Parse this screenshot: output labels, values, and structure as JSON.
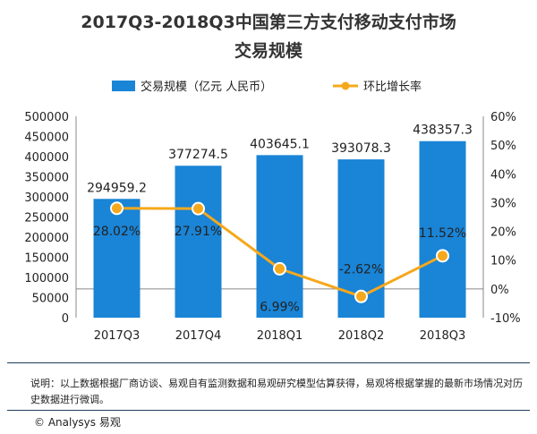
{
  "title_line1": "2017Q3-2018Q3中国第三方支付移动支付市场",
  "title_line2": "交易规模",
  "note": "说明：以上数据根据厂商访谈、易观自有监测数据和易观研究模型估算获得，易观将根据掌握的最新市场情况对历史数据进行微调。",
  "source": "© Analysys 易观",
  "colors": {
    "bar": "#1a84d6",
    "line": "#f5a81c",
    "axis": "#888888"
  },
  "chart_data": {
    "type": "bar",
    "categories": [
      "2017Q3",
      "2017Q4",
      "2018Q1",
      "2018Q2",
      "2018Q3"
    ],
    "series": [
      {
        "name": "交易规模（亿元 人民币）",
        "type": "bar",
        "axis": "left",
        "values": [
          294959.2,
          377274.5,
          403645.1,
          393078.3,
          438357.3
        ],
        "labels": [
          "294959.2",
          "377274.5",
          "403645.1",
          "393078.3",
          "438357.3"
        ]
      },
      {
        "name": "环比增长率",
        "type": "line",
        "axis": "right",
        "values": [
          28.02,
          27.91,
          6.99,
          -2.62,
          11.52
        ],
        "labels": [
          "28.02%",
          "27.91%",
          "6.99%",
          "-2.62%",
          "11.52%"
        ]
      }
    ],
    "y_left": {
      "min": 0,
      "max": 500000,
      "step": 50000,
      "ticks": [
        "0",
        "50000",
        "100000",
        "150000",
        "200000",
        "250000",
        "300000",
        "350000",
        "400000",
        "450000",
        "500000"
      ]
    },
    "y_right": {
      "min": -10,
      "max": 60,
      "step": 10,
      "ticks": [
        "-10%",
        "0%",
        "10%",
        "20%",
        "30%",
        "40%",
        "50%",
        "60%"
      ]
    },
    "legend_position": "top",
    "grid": false
  }
}
